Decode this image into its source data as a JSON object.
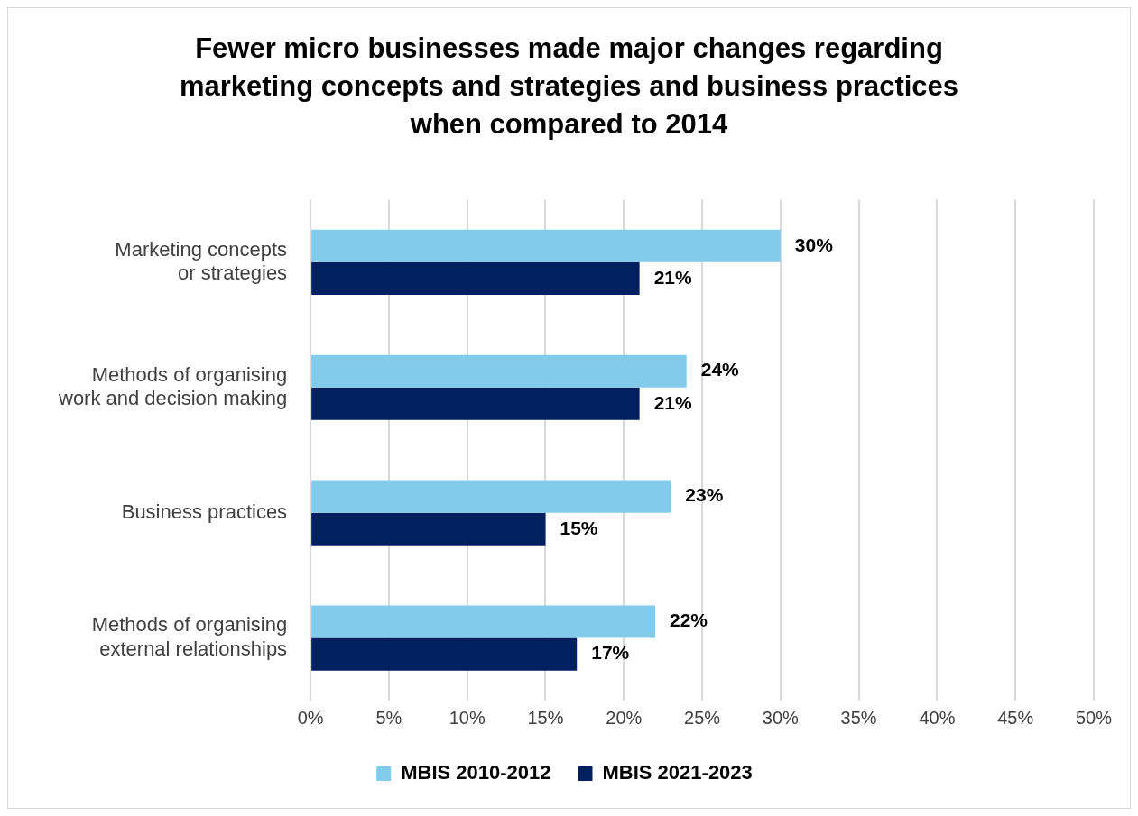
{
  "chart_data": {
    "type": "bar",
    "orientation": "horizontal",
    "title": "Fewer micro businesses made major changes regarding marketing concepts and strategies and business practices when compared to 2014",
    "categories": [
      "Marketing concepts or strategies",
      "Methods of organising work and decision making",
      "Business practices",
      "Methods of organising external relationships"
    ],
    "series": [
      {
        "name": "MBIS 2010-2012",
        "color": "#83cbeb",
        "values": [
          30,
          24,
          23,
          22
        ],
        "value_labels": [
          "30%",
          "24%",
          "23%",
          "22%"
        ]
      },
      {
        "name": "MBIS 2021-2023",
        "color": "#002060",
        "values": [
          21,
          21,
          15,
          17
        ],
        "value_labels": [
          "21%",
          "21%",
          "15%",
          "17%"
        ]
      }
    ],
    "xlim": [
      0,
      50
    ],
    "xticks": [
      {
        "value": 0,
        "label": "0%"
      },
      {
        "value": 5,
        "label": "5%"
      },
      {
        "value": 10,
        "label": "10%"
      },
      {
        "value": 15,
        "label": "15%"
      },
      {
        "value": 20,
        "label": "20%"
      },
      {
        "value": 25,
        "label": "25%"
      },
      {
        "value": 30,
        "label": "30%"
      },
      {
        "value": 35,
        "label": "35%"
      },
      {
        "value": 40,
        "label": "40%"
      },
      {
        "value": 45,
        "label": "45%"
      },
      {
        "value": 50,
        "label": "50%"
      }
    ],
    "grid": "x",
    "legend": "bottom"
  }
}
